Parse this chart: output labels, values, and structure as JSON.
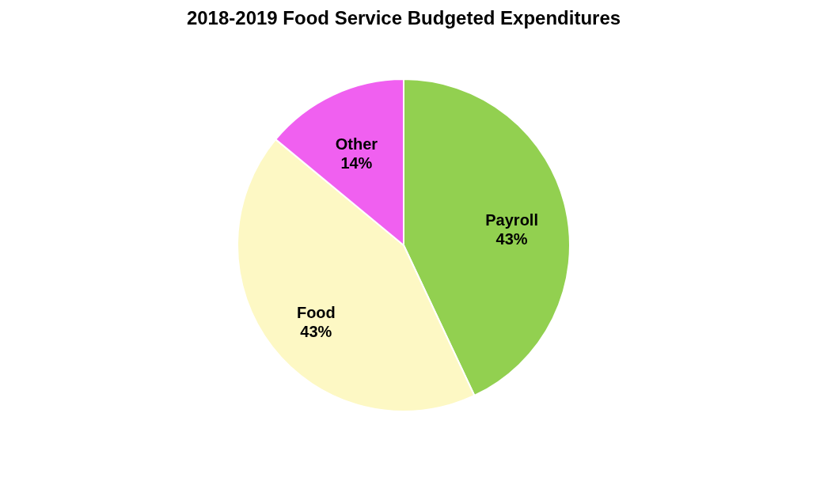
{
  "chart_data": {
    "type": "pie",
    "title": "2018-2019 Food Service Budgeted Expenditures",
    "categories": [
      "Payroll",
      "Food",
      "Other"
    ],
    "values": [
      43,
      43,
      14
    ],
    "colors": [
      "#92d050",
      "#fdf8c4",
      "#f060f0"
    ],
    "value_labels": [
      "43%",
      "43%",
      "14%"
    ],
    "legend": false
  }
}
